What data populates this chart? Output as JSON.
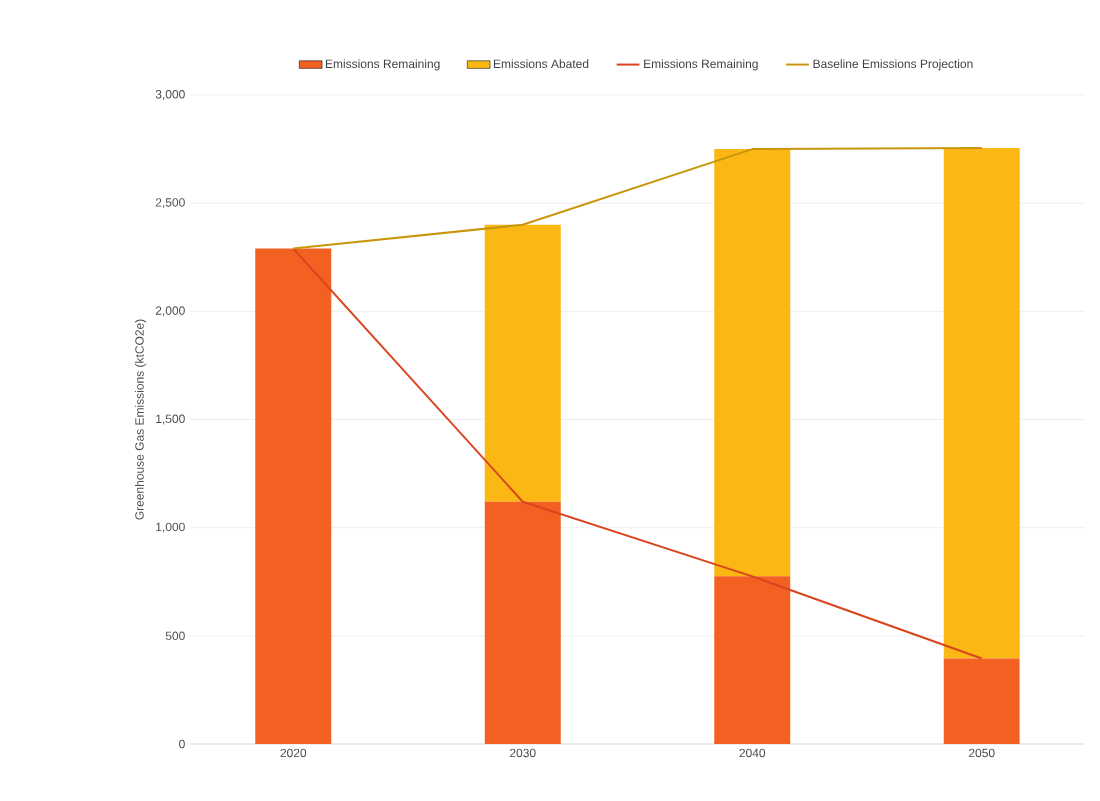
{
  "chart_data": {
    "type": "bar",
    "stacked": true,
    "ylabel": "Greenhouse Gas Emissions (ktCO2e)",
    "categories": [
      "2020",
      "2030",
      "2040",
      "2050"
    ],
    "series": [
      {
        "name": "Emissions Remaining",
        "color": "#f26122",
        "values": [
          2290,
          1120,
          775,
          395
        ]
      },
      {
        "name": "Emissions Abated",
        "color": "#fbb714",
        "values": [
          null,
          1280,
          1975,
          2360
        ]
      },
      {
        "name": "Emissions Remaining",
        "type": "line",
        "color": "#d9441c",
        "values": [
          2290,
          1120,
          775,
          395
        ]
      },
      {
        "name": "Baseline Emissions Projection",
        "type": "line",
        "color": "#c8960c",
        "values": [
          2290,
          2400,
          2750,
          2755
        ]
      }
    ],
    "ylim": [
      0,
      3000
    ],
    "yticks": [
      0,
      500,
      {
        "value": 1000,
        "label": "1,000"
      },
      {
        "value": 1500,
        "label": "1,500"
      },
      {
        "value": 2000,
        "label": "2,000"
      },
      {
        "value": 2500,
        "label": "2,500"
      },
      {
        "value": 3000,
        "label": "3,000"
      }
    ],
    "grid": "y",
    "legend": "top"
  }
}
